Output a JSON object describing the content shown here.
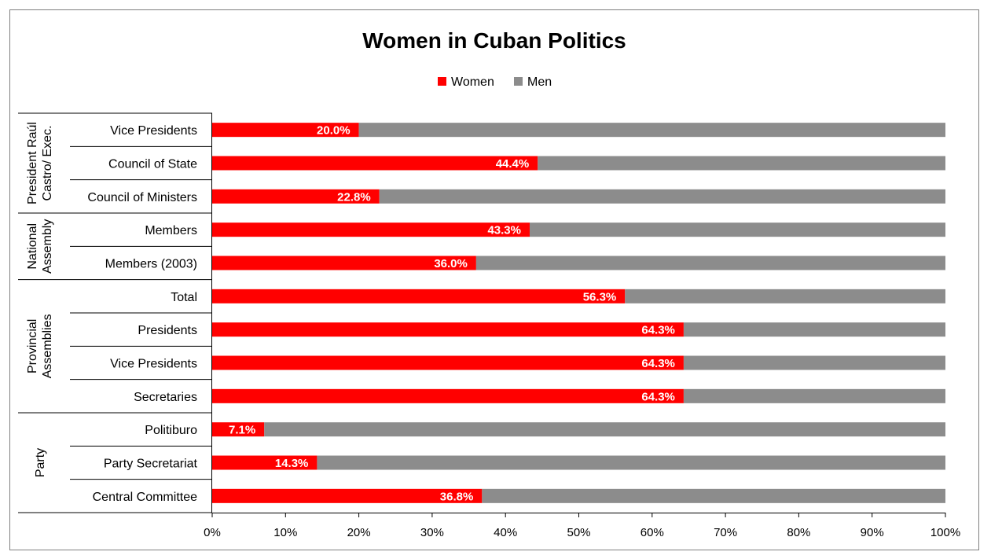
{
  "chart_data": {
    "type": "bar",
    "orientation": "horizontal",
    "stacked": "percent",
    "title": "Women in Cuban Politics",
    "legend": {
      "placement": "top-center",
      "entries": [
        "Women",
        "Men"
      ]
    },
    "colors": {
      "Women": "#ff0000",
      "Men": "#8c8c8c"
    },
    "groups": [
      {
        "label": "President Raúl Castro/ Exec.",
        "categories": [
          "Vice Presidents",
          "Council of State",
          "Council of Ministers"
        ]
      },
      {
        "label": "National Assembly",
        "categories": [
          "Members",
          "Members (2003)"
        ]
      },
      {
        "label": "Provincial Assemblies",
        "categories": [
          "Total",
          "Presidents",
          "Vice Presidents",
          "Secretaries"
        ]
      },
      {
        "label": "Party",
        "categories": [
          "Politiburo",
          "Party Secretariat",
          "Central Committee"
        ]
      }
    ],
    "categories": [
      "Vice Presidents",
      "Council of State",
      "Council of Ministers",
      "Members",
      "Members (2003)",
      "Total",
      "Presidents",
      "Vice Presidents",
      "Secretaries",
      "Politiburo",
      "Party Secretariat",
      "Central Committee"
    ],
    "series": [
      {
        "name": "Women",
        "values": [
          20.0,
          44.4,
          22.8,
          43.3,
          36.0,
          56.3,
          64.3,
          64.3,
          64.3,
          7.1,
          14.3,
          36.8
        ]
      },
      {
        "name": "Men",
        "values": [
          80.0,
          55.6,
          77.2,
          56.7,
          64.0,
          43.7,
          35.7,
          35.7,
          35.7,
          92.9,
          85.7,
          63.2
        ]
      }
    ],
    "data_labels": [
      "20.0%",
      "44.4%",
      "22.8%",
      "43.3%",
      "36.0%",
      "56.3%",
      "64.3%",
      "64.3%",
      "64.3%",
      "7.1%",
      "14.3%",
      "36.8%"
    ],
    "xlim": [
      0,
      100
    ],
    "x_ticks": [
      "0%",
      "10%",
      "20%",
      "30%",
      "40%",
      "50%",
      "60%",
      "70%",
      "80%",
      "90%",
      "100%"
    ],
    "grid": false
  }
}
